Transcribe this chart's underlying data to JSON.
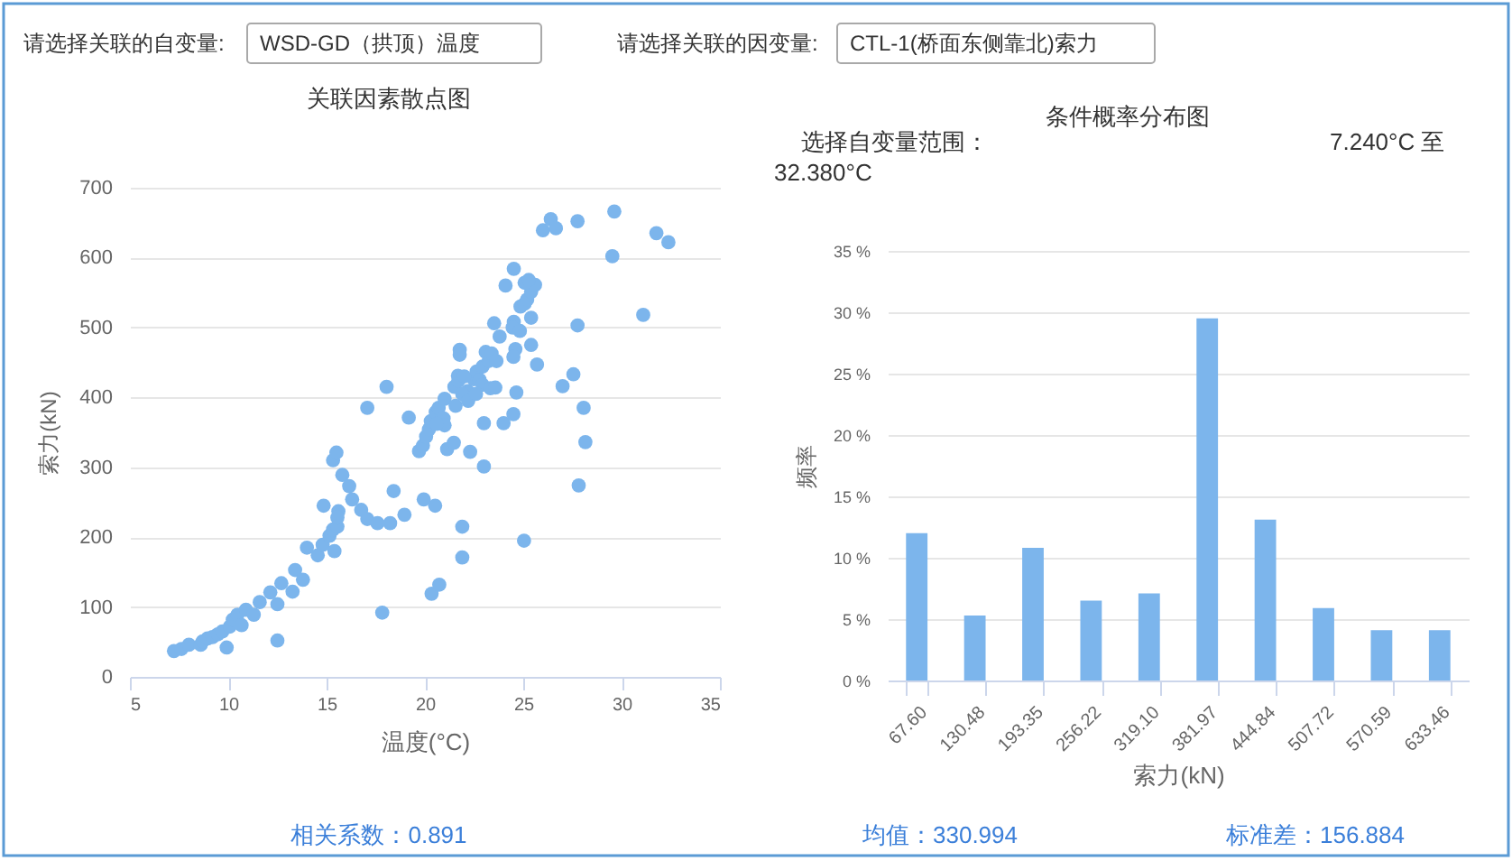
{
  "chart_data": [
    {
      "type": "other",
      "annotations": [
        "请选择关联的自变量:",
        "WSD-GD（拱顶）温度",
        "请选择关联的因变量:",
        "CTL-1(桥面东侧靠北)索力"
      ]
    },
    {
      "type": "scatter",
      "title": "关联因素散点图",
      "xlabel": "温度(°C)",
      "ylabel": "索力(kN)",
      "color": "#7cb5ec",
      "marker": "circle",
      "xlim": [
        5,
        35
      ],
      "xticks": [
        5,
        10,
        15,
        20,
        25,
        30,
        35
      ],
      "ylim": [
        0,
        700
      ],
      "yticks": [
        0,
        100,
        200,
        300,
        400,
        500,
        600,
        700
      ],
      "grid": "y",
      "annotations": [
        "相关系数：0.891"
      ],
      "x": [
        7.24,
        7.62,
        8.0,
        8.6,
        8.7,
        8.95,
        9.2,
        9.47,
        9.7,
        9.92,
        10.08,
        10.23,
        10.47,
        10.68,
        10.9,
        11.3,
        11.6,
        12.14,
        12.5,
        12.5,
        12.7,
        13.27,
        13.4,
        13.8,
        14.0,
        14.55,
        14.8,
        14.85,
        15.15,
        15.33,
        15.4,
        15.55,
        15.6,
        15.55,
        15.33,
        15.5,
        15.8,
        16.15,
        16.3,
        16.76,
        17.07,
        17.59,
        17.07,
        18.05,
        18.23,
        18.41,
        18.96,
        19.18,
        17.83,
        19.7,
        19.94,
        20.52,
        20.34,
        20.73,
        21.9,
        21.9,
        22.3,
        23.0,
        23.0,
        24.0,
        24.5,
        24.65,
        25.04,
        19.9,
        20.06,
        20.2,
        20.3,
        20.55,
        20.7,
        21.0,
        21.5,
        21.56,
        21.68,
        21.13,
        21.47,
        21.77,
        21.77,
        22.17,
        22.48,
        22.63,
        22.78,
        22.93,
        23.09,
        23.24,
        23.39,
        23.52,
        23.64,
        22.93,
        23.33,
        23.58,
        23.8,
        24.1,
        24.52,
        24.46,
        24.6,
        24.5,
        24.83,
        24.86,
        25.07,
        25.2,
        25.4,
        25.6,
        25.07,
        25.28,
        24.52,
        25.4,
        25.4,
        25.7,
        26.0,
        26.4,
        26.66,
        27.76,
        29.63,
        29.53,
        31.77,
        32.38,
        31.1,
        27.76,
        27.55,
        27.0,
        28.07,
        28.16,
        27.82,
        20.95,
        21.9,
        22.2,
        22.6,
        21.0,
        20.6,
        21.7,
        22.0
      ],
      "values": [
        37,
        40,
        46,
        46,
        51,
        55,
        57,
        61,
        65,
        42,
        72,
        82,
        89,
        74,
        96,
        89,
        107,
        121,
        104,
        52,
        134,
        122,
        153,
        139,
        185,
        174,
        189,
        245,
        202,
        211,
        180,
        215,
        237,
        228,
        310,
        321,
        289,
        273,
        254,
        239,
        226,
        220,
        385,
        415,
        220,
        266,
        232,
        371,
        92,
        323,
        254,
        245,
        119,
        132,
        215,
        171,
        322,
        301,
        363,
        363,
        376,
        407,
        195,
        331,
        344,
        354,
        366,
        379,
        385,
        398,
        415,
        388,
        431,
        326,
        335,
        468,
        461,
        409,
        426,
        437,
        425,
        444,
        465,
        452,
        463,
        506,
        452,
        418,
        413,
        414,
        487,
        560,
        508,
        500,
        469,
        458,
        495,
        530,
        534,
        540,
        551,
        561,
        564,
        568,
        584,
        514,
        475,
        447,
        639,
        655,
        642,
        652,
        666,
        602,
        635,
        622,
        518,
        503,
        433,
        416,
        385,
        336,
        274,
        370,
        405,
        395,
        405,
        360,
        362,
        424,
        430
      ]
    },
    {
      "type": "bar",
      "title": "条件概率分布图",
      "xlabel": "索力(kN)",
      "ylabel": "频率",
      "color": "#7cb5ec",
      "categories": [
        "67.60",
        "130.48",
        "193.35",
        "256.22",
        "319.10",
        "381.97",
        "444.84",
        "507.72",
        "570.59",
        "633.46"
      ],
      "values": [
        12.0,
        5.3,
        10.8,
        6.5,
        7.1,
        29.5,
        13.1,
        5.9,
        4.1,
        4.1
      ],
      "ylim": [
        0,
        35
      ],
      "yticks": [
        {
          "value": 0,
          "label": "0 %"
        },
        {
          "value": 5,
          "label": "5 %"
        },
        {
          "value": 10,
          "label": "10 %"
        },
        {
          "value": 15,
          "label": "15 %"
        },
        {
          "value": 20,
          "label": "20 %"
        },
        {
          "value": 25,
          "label": "25 %"
        },
        {
          "value": 30,
          "label": "30 %"
        },
        {
          "value": 35,
          "label": "35 %"
        }
      ],
      "grid": "y",
      "annotations": [
        "选择自变量范围：",
        "7.240°C 至",
        "32.380°C",
        "均值：330.994",
        "标准差：156.884"
      ]
    }
  ]
}
